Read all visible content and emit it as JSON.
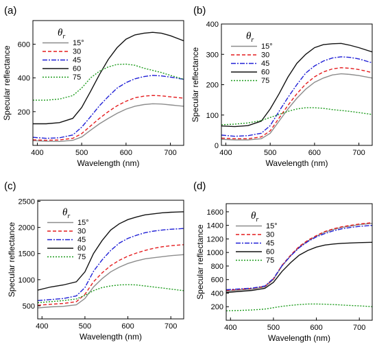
{
  "chart_data": [
    {
      "panel": "(a)",
      "type": "line",
      "xlabel": "Wavelength (nm)",
      "ylabel": "Specular reflectance",
      "xlim": [
        390,
        730
      ],
      "ylim": [
        0,
        740
      ],
      "xticks": [
        400,
        500,
        600,
        700
      ],
      "yticks": [
        200,
        400,
        600
      ],
      "legend_title": "θr",
      "legend_position": "top-left",
      "x": [
        390,
        420,
        450,
        480,
        500,
        520,
        540,
        560,
        580,
        600,
        620,
        640,
        660,
        680,
        700,
        730
      ],
      "series": [
        {
          "name": "15°",
          "values": [
            28,
            24,
            23,
            30,
            50,
            90,
            128,
            160,
            190,
            215,
            232,
            242,
            247,
            245,
            240,
            232
          ]
        },
        {
          "name": "30",
          "values": [
            33,
            30,
            32,
            42,
            70,
            115,
            160,
            200,
            235,
            262,
            282,
            292,
            296,
            294,
            288,
            280
          ]
        },
        {
          "name": "45",
          "values": [
            48,
            42,
            45,
            62,
            108,
            170,
            235,
            290,
            340,
            372,
            395,
            408,
            415,
            412,
            405,
            392
          ]
        },
        {
          "name": "60",
          "values": [
            128,
            128,
            135,
            160,
            225,
            320,
            420,
            510,
            580,
            630,
            655,
            665,
            670,
            665,
            650,
            620
          ]
        },
        {
          "name": "75",
          "values": [
            268,
            268,
            275,
            295,
            340,
            400,
            440,
            465,
            480,
            482,
            475,
            458,
            445,
            432,
            415,
            392
          ]
        }
      ]
    },
    {
      "panel": "(b)",
      "type": "line",
      "xlabel": "Wavelength (nm)",
      "ylabel": "Specular reflectance",
      "xlim": [
        390,
        730
      ],
      "ylim": [
        0,
        400
      ],
      "xticks": [
        400,
        500,
        600,
        700
      ],
      "yticks": [
        0,
        100,
        200,
        300,
        400
      ],
      "legend_title": "θr",
      "legend_position": "top-left",
      "x": [
        390,
        420,
        450,
        480,
        500,
        520,
        540,
        560,
        580,
        600,
        620,
        640,
        660,
        680,
        700,
        730
      ],
      "series": [
        {
          "name": "15°",
          "values": [
            20,
            18,
            18,
            22,
            40,
            80,
            120,
            155,
            185,
            208,
            222,
            232,
            236,
            234,
            230,
            222
          ]
        },
        {
          "name": "30",
          "values": [
            24,
            22,
            22,
            28,
            48,
            90,
            132,
            170,
            202,
            226,
            242,
            252,
            256,
            254,
            250,
            240
          ]
        },
        {
          "name": "45",
          "values": [
            34,
            30,
            32,
            40,
            65,
            112,
            158,
            200,
            238,
            262,
            278,
            288,
            292,
            290,
            285,
            272
          ]
        },
        {
          "name": "60",
          "values": [
            64,
            62,
            65,
            80,
            120,
            170,
            225,
            270,
            300,
            322,
            332,
            335,
            336,
            330,
            322,
            308
          ]
        },
        {
          "name": "75",
          "values": [
            68,
            70,
            74,
            82,
            92,
            102,
            112,
            120,
            124,
            124,
            122,
            118,
            115,
            112,
            108,
            102
          ]
        }
      ]
    },
    {
      "panel": "(c)",
      "type": "line",
      "xlabel": "Wavelength (nm)",
      "ylabel": "Specular reflectance",
      "xlim": [
        390,
        730
      ],
      "ylim": [
        250,
        2520
      ],
      "xticks": [
        400,
        500,
        600,
        700
      ],
      "yticks": [
        500,
        1000,
        1500,
        2000,
        2500
      ],
      "legend_title": "θr",
      "legend_position": "top-left",
      "x": [
        390,
        420,
        450,
        480,
        500,
        520,
        540,
        560,
        580,
        600,
        620,
        640,
        660,
        680,
        700,
        730
      ],
      "series": [
        {
          "name": "15°",
          "values": [
            460,
            480,
            490,
            520,
            640,
            860,
            1020,
            1150,
            1240,
            1310,
            1360,
            1400,
            1420,
            1440,
            1460,
            1480
          ]
        },
        {
          "name": "30",
          "values": [
            510,
            530,
            545,
            580,
            720,
            960,
            1130,
            1270,
            1370,
            1450,
            1510,
            1560,
            1600,
            1630,
            1650,
            1670
          ]
        },
        {
          "name": "45",
          "values": [
            600,
            620,
            640,
            690,
            850,
            1160,
            1380,
            1560,
            1700,
            1790,
            1850,
            1900,
            1930,
            1950,
            1965,
            1980
          ]
        },
        {
          "name": "60",
          "values": [
            800,
            860,
            900,
            960,
            1150,
            1500,
            1750,
            1950,
            2070,
            2150,
            2200,
            2240,
            2260,
            2280,
            2290,
            2300
          ]
        },
        {
          "name": "75",
          "values": [
            560,
            580,
            600,
            630,
            700,
            790,
            850,
            880,
            900,
            905,
            900,
            880,
            860,
            840,
            820,
            790
          ]
        }
      ]
    },
    {
      "panel": "(d)",
      "type": "line",
      "xlabel": "Wavelength (nm)",
      "ylabel": "Specular reflectance",
      "xlim": [
        390,
        730
      ],
      "ylim": [
        0,
        1720
      ],
      "xticks": [
        400,
        500,
        600,
        700
      ],
      "yticks": [
        200,
        400,
        600,
        800,
        1000,
        1200,
        1400,
        1600
      ],
      "legend_title": "θr",
      "legend_position": "top-left",
      "x": [
        390,
        420,
        450,
        480,
        500,
        520,
        540,
        560,
        580,
        600,
        620,
        640,
        660,
        680,
        700,
        730
      ],
      "series": [
        {
          "name": "15°",
          "values": [
            430,
            445,
            460,
            490,
            600,
            800,
            950,
            1080,
            1170,
            1240,
            1300,
            1340,
            1370,
            1390,
            1410,
            1430
          ]
        },
        {
          "name": "30",
          "values": [
            440,
            455,
            470,
            500,
            610,
            810,
            960,
            1090,
            1180,
            1250,
            1310,
            1350,
            1380,
            1400,
            1420,
            1440
          ]
        },
        {
          "name": "45",
          "values": [
            450,
            462,
            475,
            505,
            615,
            805,
            950,
            1070,
            1160,
            1230,
            1280,
            1320,
            1350,
            1370,
            1385,
            1400
          ]
        },
        {
          "name": "60",
          "values": [
            410,
            425,
            440,
            470,
            560,
            720,
            850,
            960,
            1030,
            1080,
            1110,
            1125,
            1135,
            1140,
            1145,
            1150
          ]
        },
        {
          "name": "75",
          "values": [
            140,
            145,
            152,
            165,
            185,
            205,
            220,
            232,
            240,
            240,
            237,
            232,
            225,
            218,
            212,
            200
          ]
        }
      ]
    }
  ],
  "series_styles": [
    {
      "color": "#8c8c8c",
      "dash": ""
    },
    {
      "color": "#e41a1c",
      "dash": "5,3"
    },
    {
      "color": "#1f1fd6",
      "dash": "7,2,2,2"
    },
    {
      "color": "#111111",
      "dash": ""
    },
    {
      "color": "#1a9a1a",
      "dash": "2,2"
    }
  ]
}
